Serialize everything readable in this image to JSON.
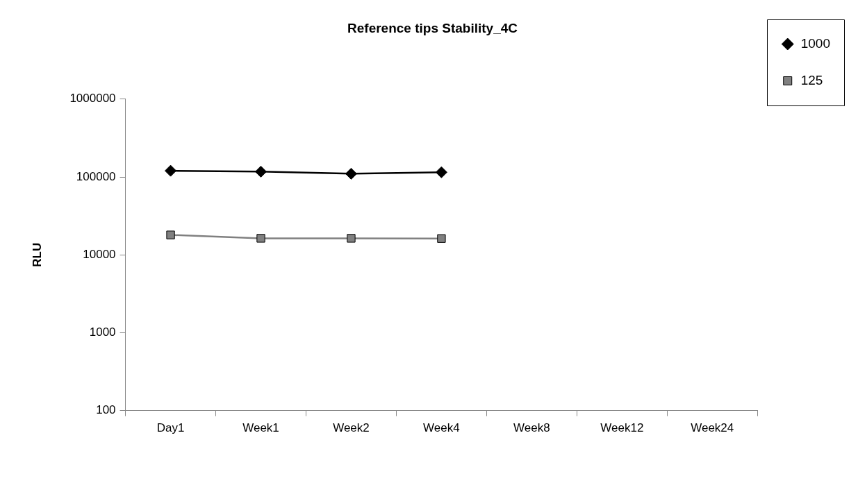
{
  "chart_data": {
    "type": "line",
    "title": "Reference tips Stability_4C",
    "ylabel": "RLU",
    "categories": [
      "Day1",
      "Week1",
      "Week2",
      "Week4",
      "Week8",
      "Week12",
      "Week24"
    ],
    "series": [
      {
        "name": "1000",
        "color": "#000000",
        "marker": "diamond",
        "values": [
          120000,
          117000,
          110000,
          115000,
          null,
          null,
          null
        ]
      },
      {
        "name": "125",
        "color": "#808080",
        "marker": "square",
        "values": [
          18000,
          16300,
          16300,
          16200,
          null,
          null,
          null
        ]
      }
    ],
    "log": "y",
    "ylim": [
      100,
      1000000
    ],
    "yticks": [
      100,
      1000,
      10000,
      100000,
      1000000
    ],
    "grid": false,
    "legend": "right",
    "line_style": "solid"
  }
}
